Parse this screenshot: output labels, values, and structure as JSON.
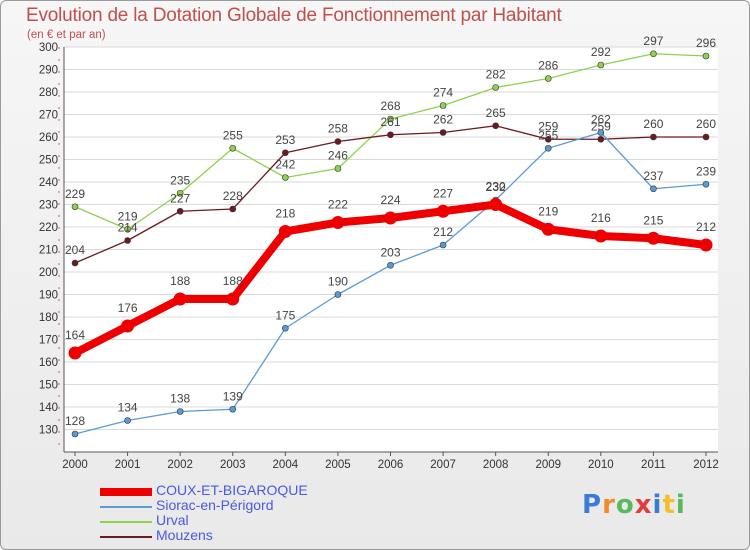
{
  "chart_data": {
    "type": "line",
    "title": "Evolution de la Dotation Globale de Fonctionnement par Habitant",
    "subtitle": "(en € et par an)",
    "xlabel": "",
    "ylabel": "",
    "ylim": [
      120,
      300
    ],
    "yticks": [
      130,
      140,
      150,
      160,
      170,
      180,
      190,
      200,
      210,
      220,
      230,
      240,
      250,
      260,
      270,
      280,
      290,
      300
    ],
    "x": [
      "2000",
      "2001",
      "2002",
      "2003",
      "2004",
      "2005",
      "2006",
      "2007",
      "2008",
      "2009",
      "2010",
      "2011",
      "2012"
    ],
    "legend_position": "bottom-left",
    "series": [
      {
        "name": "Urval",
        "color": "#8fd14f",
        "values": [
          229,
          219,
          235,
          255,
          242,
          246,
          268,
          274,
          282,
          286,
          292,
          297,
          296
        ]
      },
      {
        "name": "Mouzens",
        "color": "#6b1b20",
        "values": [
          204,
          214,
          227,
          228,
          253,
          258,
          261,
          262,
          265,
          259,
          259,
          260,
          260
        ]
      },
      {
        "name": "Siorac-en-Périgord",
        "color": "#5b9bd5",
        "values": [
          128,
          134,
          138,
          139,
          175,
          190,
          203,
          212,
          232,
          255,
          262,
          237,
          239
        ]
      },
      {
        "name": "COUX-ET-BIGAROQUE",
        "color": "#ee0000",
        "values": [
          164,
          176,
          188,
          188,
          218,
          222,
          224,
          227,
          230,
          219,
          216,
          215,
          212
        ]
      }
    ],
    "legend_order": [
      "COUX-ET-BIGAROQUE",
      "Siorac-en-Périgord",
      "Urval",
      "Mouzens"
    ]
  },
  "logo": {
    "letters": [
      "P",
      "r",
      "o",
      "x",
      "i",
      "t",
      "i"
    ],
    "colors": [
      "#3a7bd5",
      "#f28c28",
      "#5cb85c",
      "#e23b3b",
      "#3a7bd5",
      "#f2c028",
      "#5cb85c"
    ]
  }
}
